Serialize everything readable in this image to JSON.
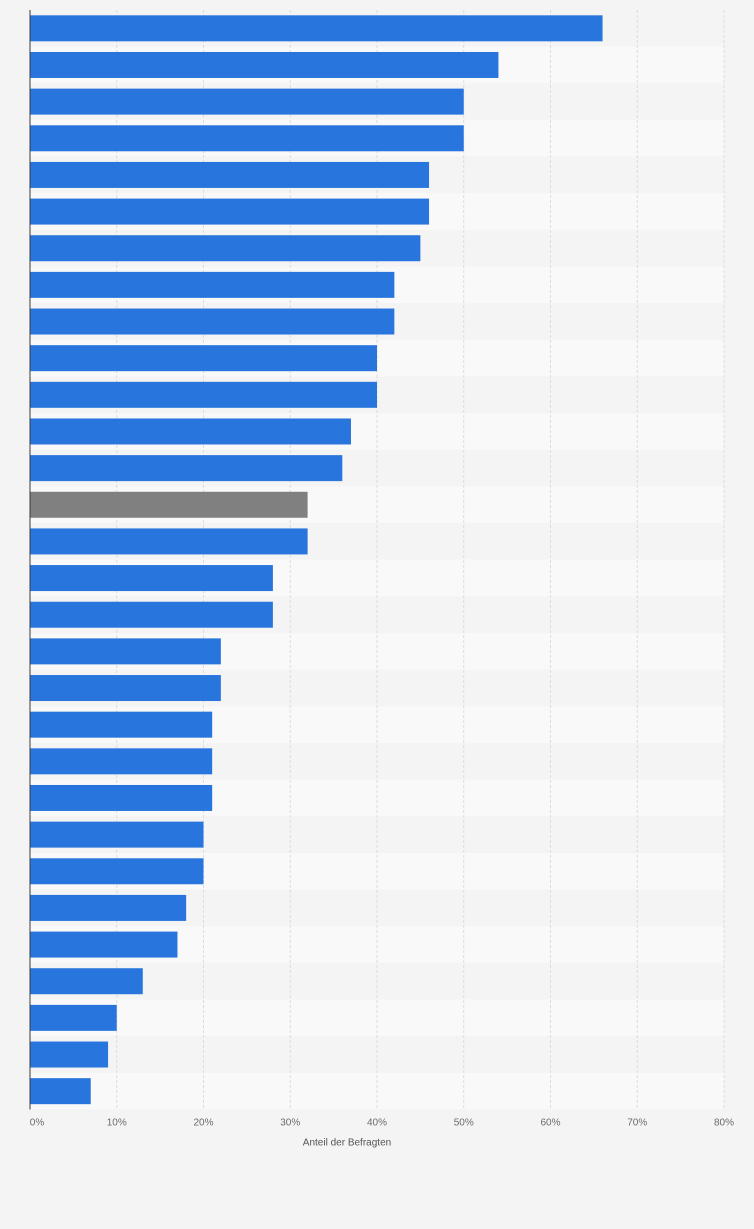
{
  "chart_data": {
    "type": "bar",
    "orientation": "horizontal",
    "xlabel": "Anteil der Befragten",
    "xlim": [
      0,
      80
    ],
    "x_ticks": [
      0,
      10,
      20,
      30,
      40,
      50,
      60,
      70,
      80
    ],
    "x_tick_labels": [
      "0%",
      "10%",
      "20%",
      "30%",
      "40%",
      "50%",
      "60%",
      "70%",
      "80%"
    ],
    "grid": "vertical-dashed",
    "bar_color": "#2876dd",
    "highlight_color": "#808080",
    "highlight_index": 13,
    "values": [
      66,
      54,
      50,
      50,
      46,
      46,
      45,
      42,
      42,
      40,
      40,
      37,
      36,
      32,
      32,
      28,
      28,
      22,
      22,
      21,
      21,
      21,
      20,
      20,
      18,
      17,
      13,
      10,
      9,
      7
    ]
  }
}
